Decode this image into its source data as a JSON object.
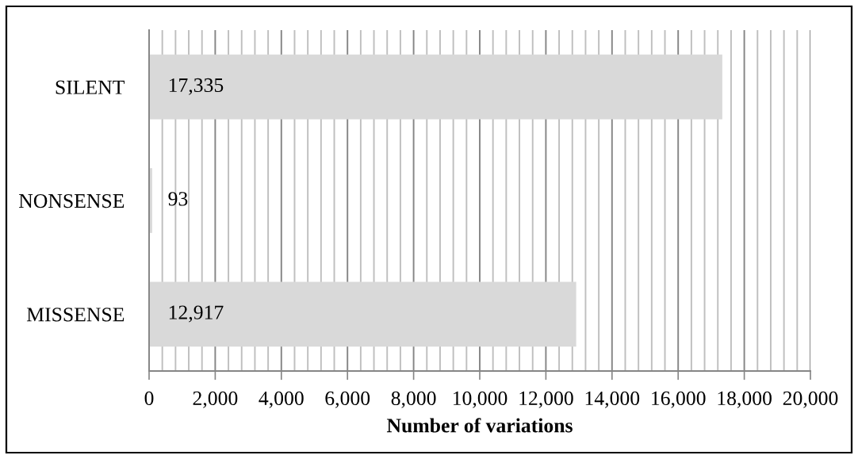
{
  "chart_data": {
    "type": "bar",
    "orientation": "horizontal",
    "categories": [
      "SILENT",
      "NONSENSE",
      "MISSENSE"
    ],
    "values": [
      17335,
      93,
      12917
    ],
    "color": "#d9d9d9",
    "value_labels": [
      "17,335",
      "93",
      "12,917"
    ],
    "xlabel": "Number of variations",
    "xlim": [
      0,
      20000
    ],
    "xticks": [
      0,
      {
        "value": 400,
        "label": null
      },
      {
        "value": 800,
        "label": null
      },
      {
        "value": 1200,
        "label": null
      },
      {
        "value": 1600,
        "label": null
      },
      {
        "value": 2000,
        "label": "2,000"
      },
      {
        "value": 2400,
        "label": null
      },
      {
        "value": 2800,
        "label": null
      },
      {
        "value": 3200,
        "label": null
      },
      {
        "value": 3600,
        "label": null
      },
      {
        "value": 4000,
        "label": "4,000"
      },
      {
        "value": 4400,
        "label": null
      },
      {
        "value": 4800,
        "label": null
      },
      {
        "value": 5200,
        "label": null
      },
      {
        "value": 5600,
        "label": null
      },
      {
        "value": 6000,
        "label": "6,000"
      },
      {
        "value": 6400,
        "label": null
      },
      {
        "value": 6800,
        "label": null
      },
      {
        "value": 7200,
        "label": null
      },
      {
        "value": 7600,
        "label": null
      },
      {
        "value": 8000,
        "label": "8,000"
      },
      {
        "value": 8400,
        "label": null
      },
      {
        "value": 8800,
        "label": null
      },
      {
        "value": 9200,
        "label": null
      },
      {
        "value": 9600,
        "label": null
      },
      {
        "value": 10000,
        "label": "10,000"
      },
      {
        "value": 10400,
        "label": null
      },
      {
        "value": 10800,
        "label": null
      },
      {
        "value": 11200,
        "label": null
      },
      {
        "value": 11600,
        "label": null
      },
      {
        "value": 12000,
        "label": "12,000"
      },
      {
        "value": 12400,
        "label": null
      },
      {
        "value": 12800,
        "label": null
      },
      {
        "value": 13200,
        "label": null
      },
      {
        "value": 13600,
        "label": null
      },
      {
        "value": 14000,
        "label": "14,000"
      },
      {
        "value": 14400,
        "label": null
      },
      {
        "value": 14800,
        "label": null
      },
      {
        "value": 15200,
        "label": null
      },
      {
        "value": 15600,
        "label": null
      },
      {
        "value": 16000,
        "label": "16,000"
      },
      {
        "value": 16400,
        "label": null
      },
      {
        "value": 16800,
        "label": null
      },
      {
        "value": 17200,
        "label": null
      },
      {
        "value": 17600,
        "label": null
      },
      {
        "value": 18000,
        "label": "18,000"
      },
      {
        "value": 18400,
        "label": null
      },
      {
        "value": 18800,
        "label": null
      },
      {
        "value": 19200,
        "label": null
      },
      {
        "value": 19600,
        "label": null
      },
      {
        "value": 20000,
        "label": "20,000"
      }
    ],
    "grid": "x"
  }
}
